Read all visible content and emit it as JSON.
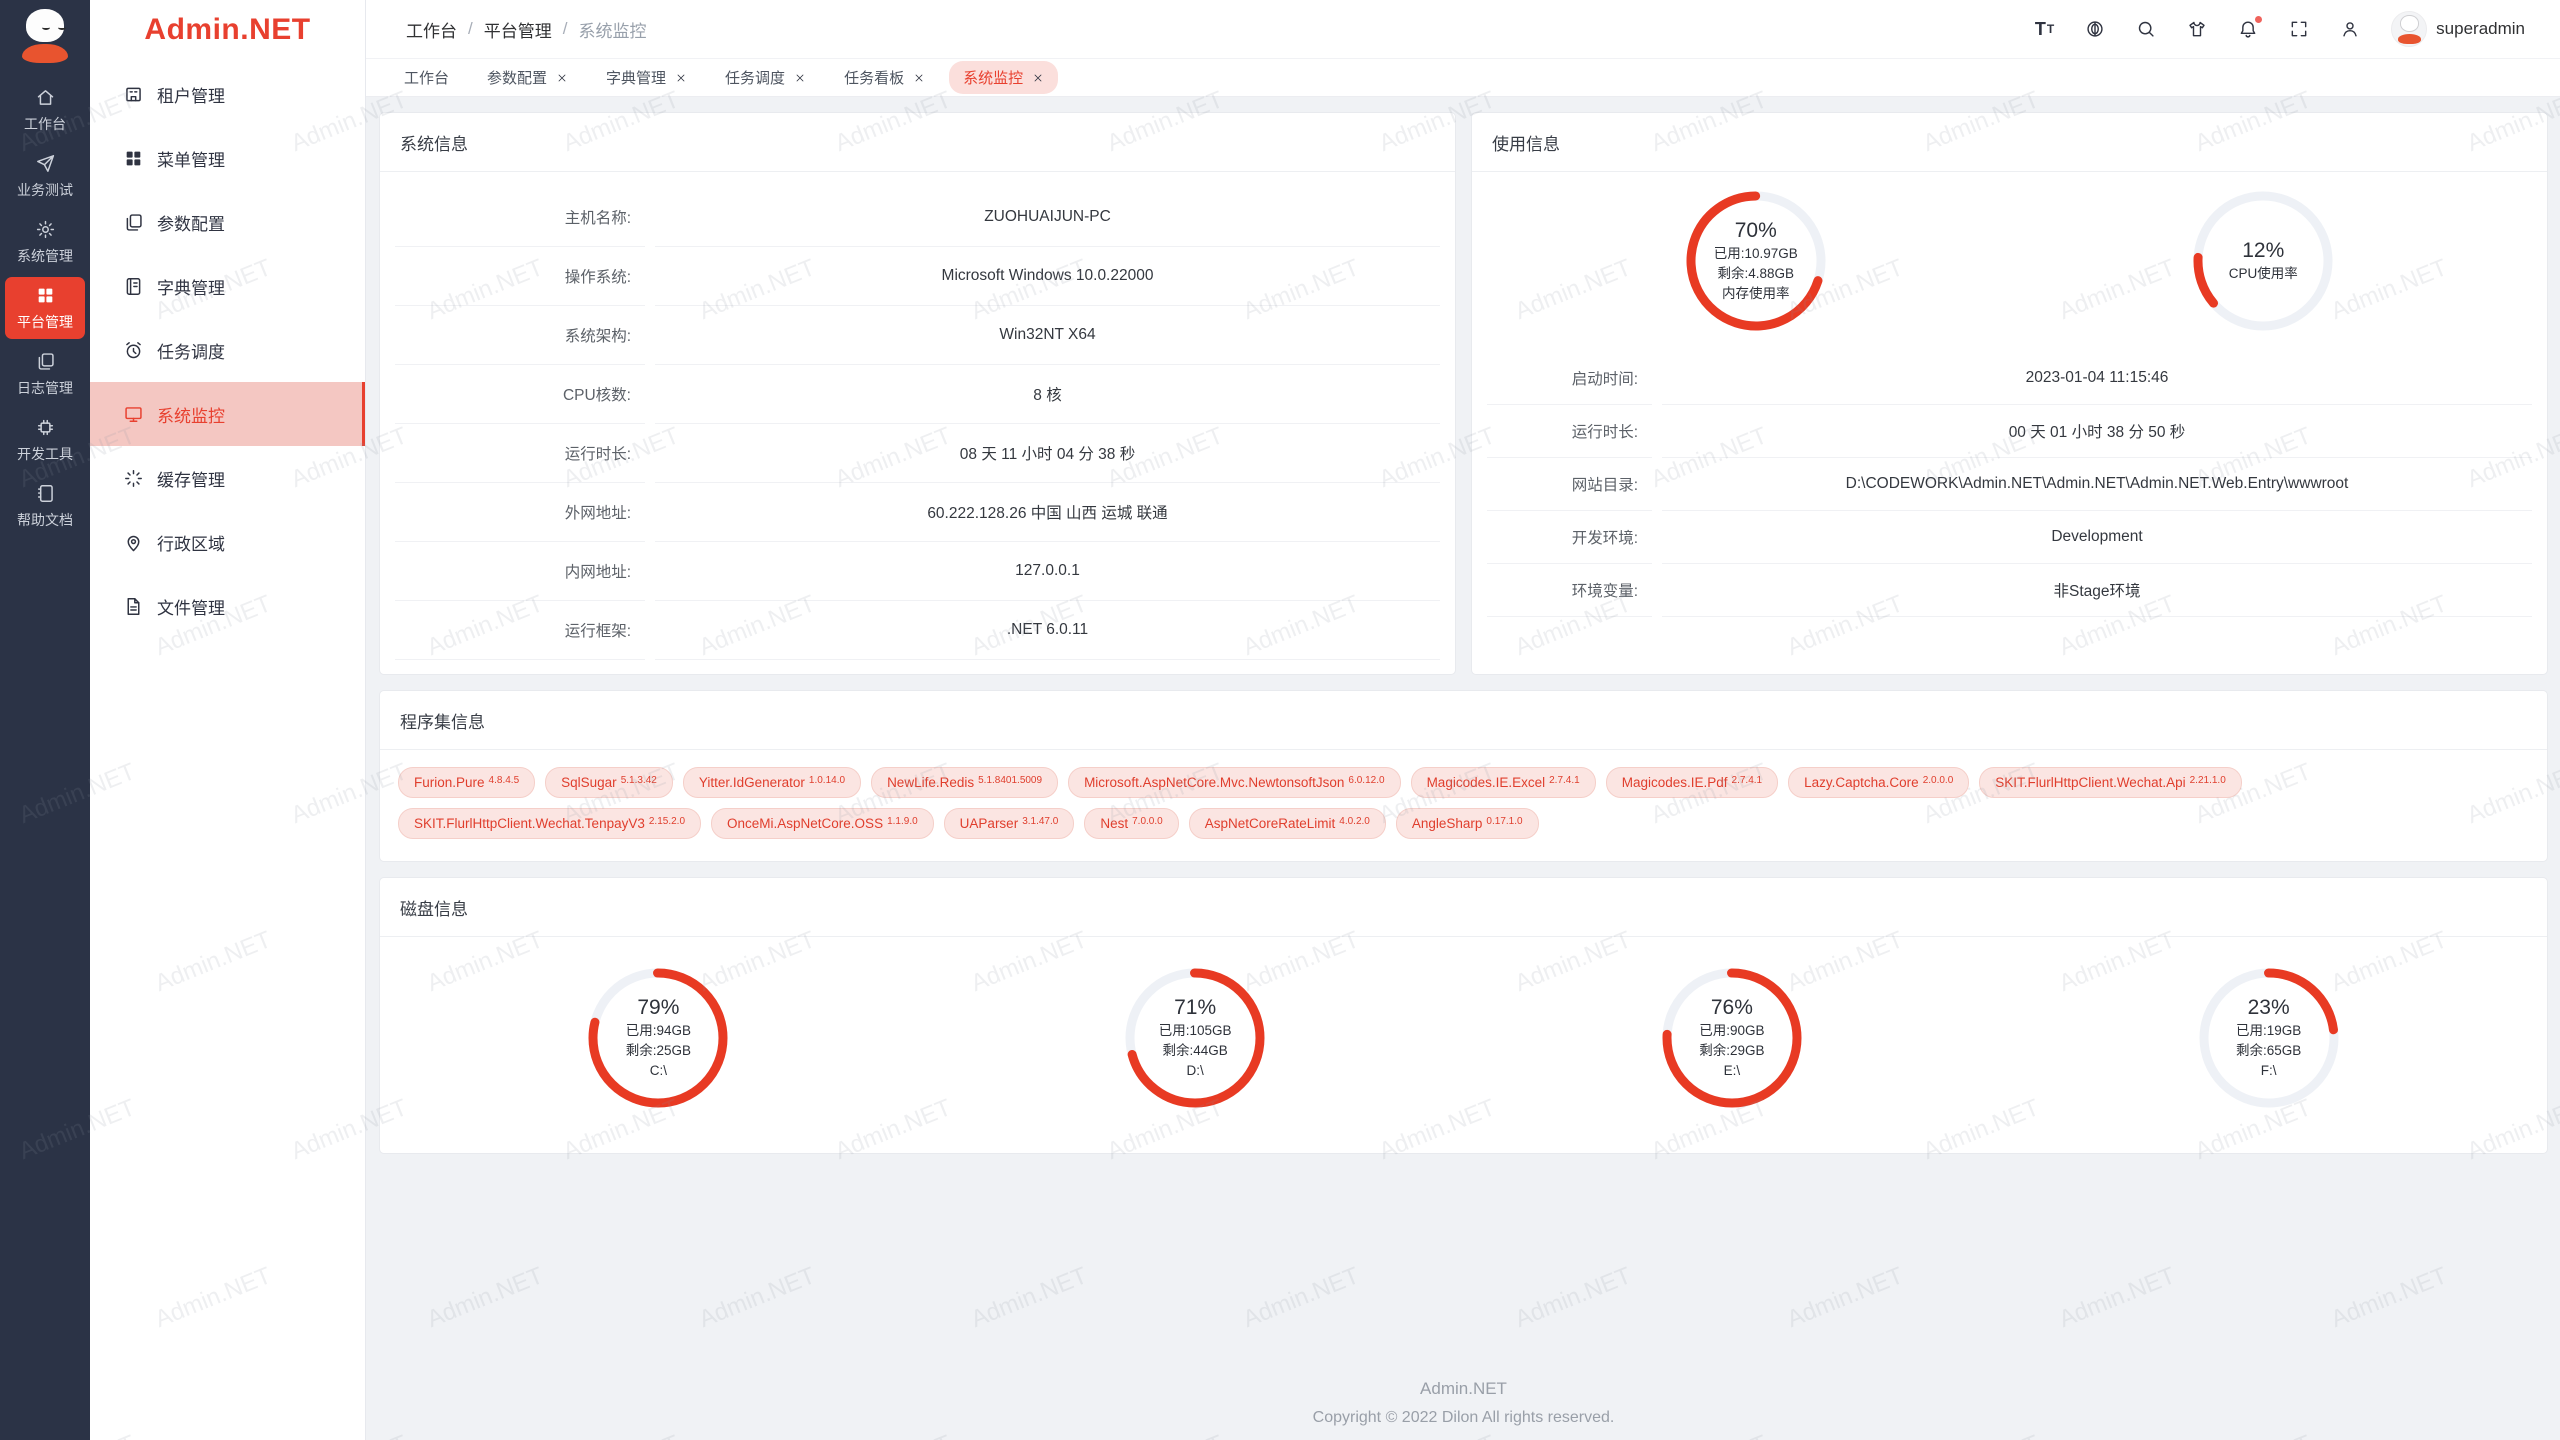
{
  "brand": {
    "name": "Admin.NET",
    "color": "#e8402f"
  },
  "watermark": {
    "text": "Admin.NET"
  },
  "colors": {
    "brand": "#e8402f",
    "gauge_arc": "#e83a23",
    "gauge_track": "#eef1f6",
    "rail_bg": "#2b3346",
    "active_item_bg": "#f4c7c2",
    "active_tab_bg": "#fbdfdc",
    "chip_bg": "#fbe5e2",
    "chip_text": "#e03e2d"
  },
  "rail": {
    "items": [
      {
        "key": "workbench",
        "icon": "home",
        "label": "工作台",
        "active": false
      },
      {
        "key": "business-test",
        "icon": "send",
        "label": "业务测试",
        "active": false
      },
      {
        "key": "system-mgmt",
        "icon": "gear",
        "label": "系统管理",
        "active": false
      },
      {
        "key": "platform-mgmt",
        "icon": "grid",
        "label": "平台管理",
        "active": true
      },
      {
        "key": "log-mgmt",
        "icon": "copy",
        "label": "日志管理",
        "active": false
      },
      {
        "key": "dev-tools",
        "icon": "cpu",
        "label": "开发工具",
        "active": false
      },
      {
        "key": "help-docs",
        "icon": "notebook",
        "label": "帮助文档",
        "active": false
      }
    ]
  },
  "sidebar": {
    "logo": "Admin.NET",
    "items": [
      {
        "key": "tenant-mgmt",
        "icon": "bank",
        "label": "租户管理",
        "active": false
      },
      {
        "key": "menu-mgmt",
        "icon": "grid",
        "label": "菜单管理",
        "active": false
      },
      {
        "key": "param-config",
        "icon": "copy",
        "label": "参数配置",
        "active": false
      },
      {
        "key": "dict-mgmt",
        "icon": "book",
        "label": "字典管理",
        "active": false
      },
      {
        "key": "task-schedule",
        "icon": "alarm",
        "label": "任务调度",
        "active": false
      },
      {
        "key": "system-monitor",
        "icon": "monitor",
        "label": "系统监控",
        "active": true
      },
      {
        "key": "cache-mgmt",
        "icon": "loading",
        "label": "缓存管理",
        "active": false
      },
      {
        "key": "admin-region",
        "icon": "pin",
        "label": "行政区域",
        "active": false
      },
      {
        "key": "file-mgmt",
        "icon": "file",
        "label": "文件管理",
        "active": false
      }
    ]
  },
  "header": {
    "breadcrumb": [
      "工作台",
      "平台管理",
      "系统监控"
    ],
    "icons": [
      {
        "key": "font-size",
        "icon": "font-size"
      },
      {
        "key": "language",
        "icon": "language"
      },
      {
        "key": "search",
        "icon": "search"
      },
      {
        "key": "theme-shirt",
        "icon": "shirt"
      },
      {
        "key": "notification-bell",
        "icon": "bell",
        "badge": true
      },
      {
        "key": "fullscreen",
        "icon": "fullscreen"
      },
      {
        "key": "profile",
        "icon": "person"
      }
    ],
    "user": "superadmin"
  },
  "tabs": [
    {
      "label": "工作台",
      "closable": false,
      "active": false
    },
    {
      "label": "参数配置",
      "closable": true,
      "active": false
    },
    {
      "label": "字典管理",
      "closable": true,
      "active": false
    },
    {
      "label": "任务调度",
      "closable": true,
      "active": false
    },
    {
      "label": "任务看板",
      "closable": true,
      "active": false
    },
    {
      "label": "系统监控",
      "closable": true,
      "active": true
    }
  ],
  "cards": {
    "system": {
      "title": "系统信息",
      "rows": [
        {
          "label": "主机名称:",
          "value": "ZUOHUAIJUN-PC"
        },
        {
          "label": "操作系统:",
          "value": "Microsoft Windows 10.0.22000"
        },
        {
          "label": "系统架构:",
          "value": "Win32NT X64"
        },
        {
          "label": "CPU核数:",
          "value": "8 核"
        },
        {
          "label": "运行时长:",
          "value": "08 天 11 小时 04 分 38 秒"
        },
        {
          "label": "外网地址:",
          "value": "60.222.128.26 中国 山西 运城 联通"
        },
        {
          "label": "内网地址:",
          "value": "127.0.0.1"
        },
        {
          "label": "运行框架:",
          "value": ".NET 6.0.11"
        }
      ]
    },
    "usage": {
      "title": "使用信息",
      "gauges": [
        {
          "key": "memory",
          "percent": 70,
          "lines": [
            "已用:10.97GB",
            "剩余:4.88GB",
            "内存使用率"
          ],
          "start_angle": 18
        },
        {
          "key": "cpu",
          "percent": 12,
          "lines": [
            "CPU使用率"
          ],
          "start_angle": 140
        }
      ],
      "rows": [
        {
          "label": "启动时间:",
          "value": "2023-01-04 11:15:46"
        },
        {
          "label": "运行时长:",
          "value": "00 天 01 小时 38 分 50 秒"
        },
        {
          "label": "网站目录:",
          "value": "D:\\CODEWORK\\Admin.NET\\Admin.NET\\Admin.NET.Web.Entry\\wwwroot"
        },
        {
          "label": "开发环境:",
          "value": "Development"
        },
        {
          "label": "环境变量:",
          "value": "非Stage环境"
        }
      ]
    },
    "assembly": {
      "title": "程序集信息",
      "packages": [
        {
          "name": "Furion.Pure",
          "version": "4.8.4.5"
        },
        {
          "name": "SqlSugar",
          "version": "5.1.3.42"
        },
        {
          "name": "Yitter.IdGenerator",
          "version": "1.0.14.0"
        },
        {
          "name": "NewLife.Redis",
          "version": "5.1.8401.5009"
        },
        {
          "name": "Microsoft.AspNetCore.Mvc.NewtonsoftJson",
          "version": "6.0.12.0"
        },
        {
          "name": "Magicodes.IE.Excel",
          "version": "2.7.4.1"
        },
        {
          "name": "Magicodes.IE.Pdf",
          "version": "2.7.4.1"
        },
        {
          "name": "Lazy.Captcha.Core",
          "version": "2.0.0.0"
        },
        {
          "name": "SKIT.FlurlHttpClient.Wechat.Api",
          "version": "2.21.1.0"
        },
        {
          "name": "SKIT.FlurlHttpClient.Wechat.TenpayV3",
          "version": "2.15.2.0"
        },
        {
          "name": "OnceMi.AspNetCore.OSS",
          "version": "1.1.9.0"
        },
        {
          "name": "UAParser",
          "version": "3.1.47.0"
        },
        {
          "name": "Nest",
          "version": "7.0.0.0"
        },
        {
          "name": "AspNetCoreRateLimit",
          "version": "4.0.2.0"
        },
        {
          "name": "AngleSharp",
          "version": "0.17.1.0"
        }
      ]
    },
    "disk": {
      "title": "磁盘信息",
      "gauges": [
        {
          "key": "drive-c",
          "percent": 79,
          "lines": [
            "已用:94GB",
            "剩余:25GB",
            "C:\\"
          ],
          "start_angle": -90
        },
        {
          "key": "drive-d",
          "percent": 71,
          "lines": [
            "已用:105GB",
            "剩余:44GB",
            "D:\\"
          ],
          "start_angle": -90
        },
        {
          "key": "drive-e",
          "percent": 76,
          "lines": [
            "已用:90GB",
            "剩余:29GB",
            "E:\\"
          ],
          "start_angle": -90
        },
        {
          "key": "drive-f",
          "percent": 23,
          "lines": [
            "已用:19GB",
            "剩余:65GB",
            "F:\\"
          ],
          "start_angle": -90
        }
      ]
    }
  },
  "chart_data": [
    {
      "type": "gauge",
      "title": "内存使用率",
      "value_percent": 70,
      "labels": [
        "已用:10.97GB",
        "剩余:4.88GB"
      ]
    },
    {
      "type": "gauge",
      "title": "CPU使用率",
      "value_percent": 12,
      "labels": []
    },
    {
      "type": "gauge",
      "title": "C:\\",
      "value_percent": 79,
      "labels": [
        "已用:94GB",
        "剩余:25GB"
      ]
    },
    {
      "type": "gauge",
      "title": "D:\\",
      "value_percent": 71,
      "labels": [
        "已用:105GB",
        "剩余:44GB"
      ]
    },
    {
      "type": "gauge",
      "title": "E:\\",
      "value_percent": 76,
      "labels": [
        "已用:90GB",
        "剩余:29GB"
      ]
    },
    {
      "type": "gauge",
      "title": "F:\\",
      "value_percent": 23,
      "labels": [
        "已用:19GB",
        "剩余:65GB"
      ]
    }
  ],
  "footer": {
    "line1": "Admin.NET",
    "line2": "Copyright © 2022 Dilon All rights reserved."
  }
}
